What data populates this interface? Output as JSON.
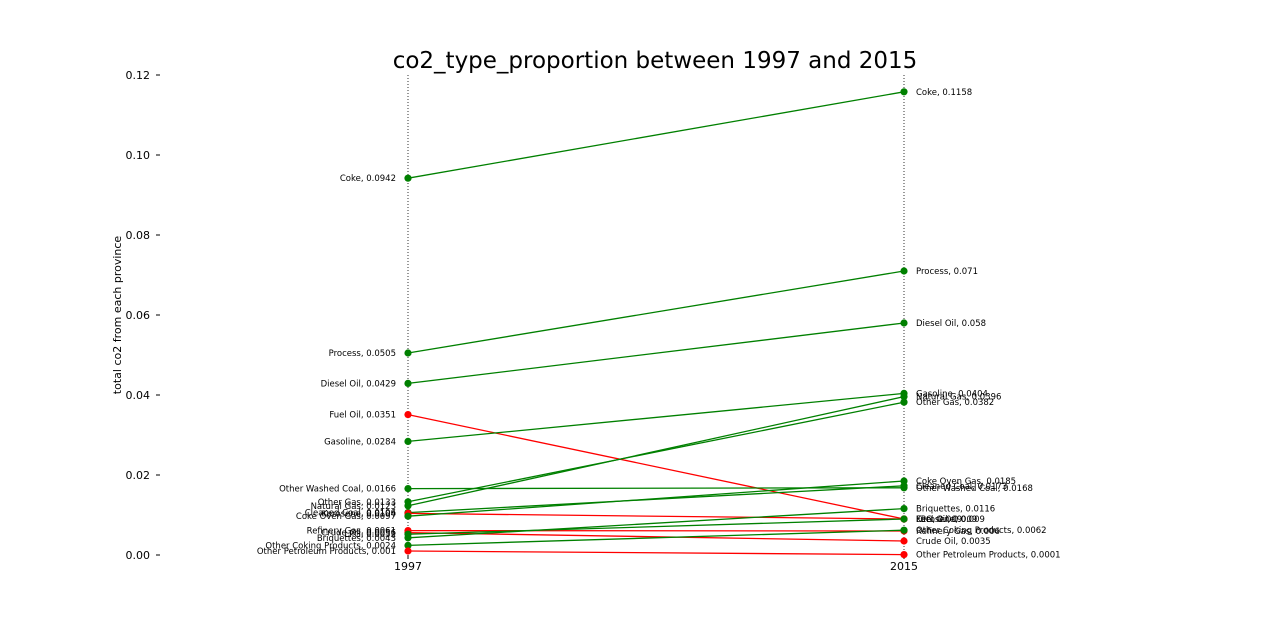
{
  "chart_data": {
    "type": "line",
    "title": "co2_type_proportion between 1997 and 2015",
    "xlabel": "",
    "ylabel": "total co2 from each province",
    "x": [
      "1997",
      "2015"
    ],
    "ylim": [
      0,
      0.12
    ],
    "yticks": [
      "0.00",
      "0.02",
      "0.04",
      "0.06",
      "0.08",
      "0.10",
      "0.12"
    ],
    "grid": false,
    "legend": "none",
    "colors": {
      "increase": "#008000",
      "decrease": "#ff0000",
      "vline": "#000000"
    },
    "series": [
      {
        "name": "Coke",
        "values": [
          0.0942,
          0.1158
        ],
        "label_1997": "Coke, 0.0942",
        "label_2015": "Coke, 0.1158"
      },
      {
        "name": "Process",
        "values": [
          0.0505,
          0.071
        ],
        "label_1997": "Process, 0.0505",
        "label_2015": "Process, 0.071"
      },
      {
        "name": "Diesel Oil",
        "values": [
          0.0429,
          0.058
        ],
        "label_1997": "Diesel Oil, 0.0429",
        "label_2015": "Diesel Oil, 0.058"
      },
      {
        "name": "Fuel Oil",
        "values": [
          0.0351,
          0.009
        ],
        "label_1997": "Fuel Oil, 0.0351",
        "label_2015": "Fuel Oil, 0.009"
      },
      {
        "name": "Gasoline",
        "values": [
          0.0284,
          0.0404
        ],
        "label_1997": "Gasoline, 0.0284",
        "label_2015": "Gasoline, 0.0404"
      },
      {
        "name": "Other Washed Coal",
        "values": [
          0.0166,
          0.0168
        ],
        "label_1997": "Other Washed Coal, 0.0166",
        "label_2015": "Other Washed Coal, 0.0168"
      },
      {
        "name": "Other Gas",
        "values": [
          0.0133,
          0.0382
        ],
        "label_1997": "Other Gas, 0.0133",
        "label_2015": "Other Gas, 0.0382"
      },
      {
        "name": "Natural Gas",
        "values": [
          0.0123,
          0.0396
        ],
        "label_1997": "Natural Gas, 0.0123",
        "label_2015": "Natural Gas, 0.0396"
      },
      {
        "name": "Cleaned Coal",
        "values": [
          0.0106,
          0.0173
        ],
        "label_1997": "Cleaned Coal, 0.0106",
        "label_2015": "Cleaned Coal, 0.0173"
      },
      {
        "name": "Kerosene",
        "values": [
          0.0104,
          0.009
        ],
        "label_1997": "Kerosene, 0.0104",
        "label_2015": "Kerosene, 0.009"
      },
      {
        "name": "Coke Oven Gas",
        "values": [
          0.0097,
          0.0185
        ],
        "label_1997": "Coke Oven Gas, 0.0097",
        "label_2015": "Coke Oven Gas, 0.0185"
      },
      {
        "name": "Refinery Gas",
        "values": [
          0.0061,
          0.006
        ],
        "label_1997": "Refinery Gas, 0.0061",
        "label_2015": "Refinery Gas, 0.006"
      },
      {
        "name": "Crude Oil",
        "values": [
          0.0056,
          0.0035
        ],
        "label_1997": "Crude Oil, 0.0056",
        "label_2015": "Crude Oil, 0.0035"
      },
      {
        "name": "LPG",
        "values": [
          0.0052,
          0.009
        ],
        "label_1997": "LPG, 0.0052",
        "label_2015": "LPG, 0.009"
      },
      {
        "name": "Briquettes",
        "values": [
          0.0043,
          0.0116
        ],
        "label_1997": "Briquettes, 0.0043",
        "label_2015": "Briquettes, 0.0116"
      },
      {
        "name": "Other Coking Products",
        "values": [
          0.0024,
          0.0062
        ],
        "label_1997": "Other Coking Products, 0.0024",
        "label_2015": "Other Coking Products, 0.0062"
      },
      {
        "name": "Other Petroleum Products",
        "values": [
          0.001,
          0.0001
        ],
        "label_1997": "Other Petroleum Products, 0.001",
        "label_2015": "Other Petroleum Products, 0.0001"
      }
    ]
  }
}
